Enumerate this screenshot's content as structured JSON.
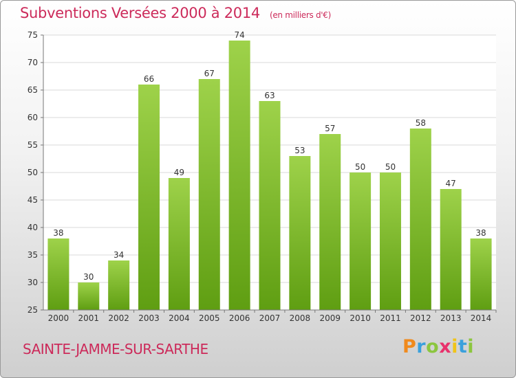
{
  "title": "Subventions Versées 2000 à 2014",
  "unit": "(en milliers d'€)",
  "commune": "SAINTE-JAMME-SUR-SARTHE",
  "logo": {
    "letters": [
      "P",
      "r",
      "o",
      "x",
      "i",
      "t",
      "i"
    ],
    "colors": [
      "#f08a1c",
      "#3aa0dc",
      "#8cc63f",
      "#e8326c",
      "#f0c419",
      "#3aa0dc",
      "#8cc63f"
    ]
  },
  "chart_data": {
    "type": "bar",
    "categories": [
      "2000",
      "2001",
      "2002",
      "2003",
      "2004",
      "2005",
      "2006",
      "2007",
      "2008",
      "2009",
      "2010",
      "2011",
      "2012",
      "2013",
      "2014"
    ],
    "values": [
      38,
      30,
      34,
      66,
      49,
      67,
      74,
      63,
      53,
      57,
      50,
      50,
      58,
      47,
      38
    ],
    "ylim": [
      25,
      75
    ],
    "yticks": [
      25,
      30,
      35,
      40,
      45,
      50,
      55,
      60,
      65,
      70,
      75
    ],
    "grid": true,
    "colors": {
      "bar_top": "#9ed24a",
      "bar_bottom": "#5f9e12",
      "grid": "#d9d9d9"
    }
  }
}
